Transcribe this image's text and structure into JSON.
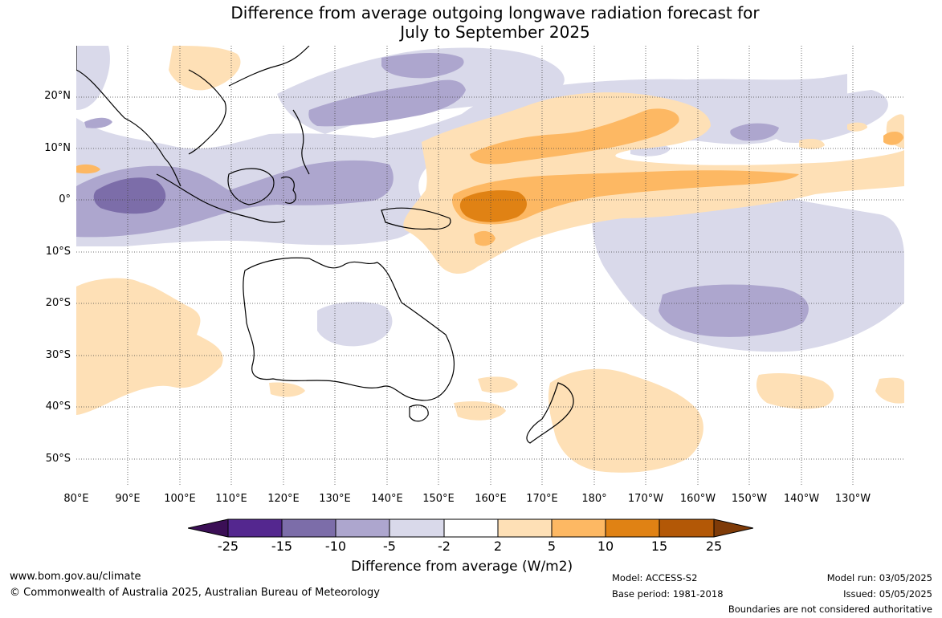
{
  "title_line1": "Difference from average outgoing longwave radiation forecast for",
  "title_line2": "July to September 2025",
  "lat_labels": [
    "20°N",
    "10°N",
    "0°",
    "10°S",
    "20°S",
    "30°S",
    "40°S",
    "50°S"
  ],
  "lon_labels": [
    "80°E",
    "90°E",
    "100°E",
    "110°E",
    "120°E",
    "130°E",
    "140°E",
    "150°E",
    "160°E",
    "170°E",
    "180°",
    "170°W",
    "160°W",
    "150°W",
    "140°W",
    "130°W"
  ],
  "colorbar": {
    "ticks": [
      "-25",
      "-15",
      "-10",
      "-5",
      "-2",
      "2",
      "5",
      "10",
      "15",
      "25"
    ],
    "colors": [
      "#3b0f56",
      "#54278f",
      "#7c6da9",
      "#ada6ce",
      "#d9d9ea",
      "#ffffff",
      "#fee0b6",
      "#fdb863",
      "#e08214",
      "#b35806",
      "#7f3b08"
    ],
    "label": "Difference from average (W/m2)"
  },
  "footer": {
    "website": "www.bom.gov.au/climate",
    "copyright": "© Commonwealth of Australia 2025, Australian Bureau of Meteorology",
    "model": "Model: ACCESS-S2",
    "base_period": "Base period: 1981-2018",
    "model_run": "Model run: 03/05/2025",
    "issued": "Issued: 05/05/2025",
    "disclaimer": "Boundaries are not considered authoritative"
  }
}
